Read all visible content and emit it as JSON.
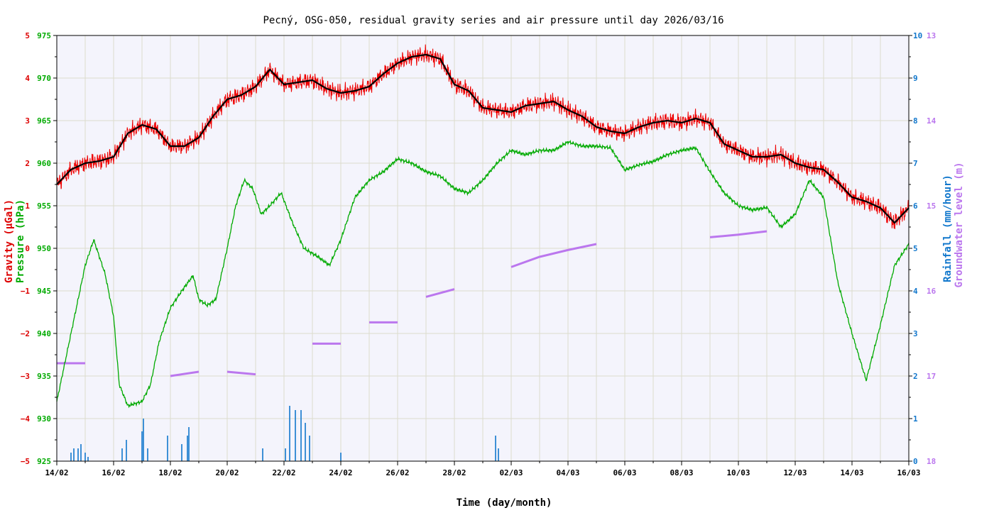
{
  "chart_data": {
    "type": "line",
    "title": "Pecný, OSG-050, residual gravity series and air pressure until day 2026/03/16",
    "xlabel": "Time (day/month)",
    "ylabel_left_1": "Gravity (µGal)",
    "ylabel_left_2": "Pressure (hPa)",
    "ylabel_right_1": "Rainfall (mm/hour)",
    "ylabel_right_2": "Groundwater level (m)",
    "x_range_days": [
      0,
      30
    ],
    "x_ticks": [
      {
        "day": 0,
        "label": "14/02"
      },
      {
        "day": 2,
        "label": "16/02"
      },
      {
        "day": 4,
        "label": "18/02"
      },
      {
        "day": 6,
        "label": "20/02"
      },
      {
        "day": 8,
        "label": "22/02"
      },
      {
        "day": 10,
        "label": "24/02"
      },
      {
        "day": 12,
        "label": "26/02"
      },
      {
        "day": 14,
        "label": "28/02"
      },
      {
        "day": 16,
        "label": "02/03"
      },
      {
        "day": 18,
        "label": "04/03"
      },
      {
        "day": 20,
        "label": "06/03"
      },
      {
        "day": 22,
        "label": "08/03"
      },
      {
        "day": 24,
        "label": "10/03"
      },
      {
        "day": 26,
        "label": "12/03"
      },
      {
        "day": 28,
        "label": "14/03"
      },
      {
        "day": 30,
        "label": "16/03"
      }
    ],
    "gravity_ticks": [
      "5",
      "4",
      "3",
      "2",
      "1",
      "0",
      "−1",
      "−2",
      "−3",
      "−4",
      "−5"
    ],
    "pressure_ticks": [
      "975",
      "970",
      "965",
      "960",
      "955",
      "950",
      "945",
      "940",
      "935",
      "930",
      "925"
    ],
    "rainfall_ticks": [
      "10",
      "9",
      "8",
      "7",
      "6",
      "5",
      "4",
      "3",
      "2",
      "1",
      "0"
    ],
    "groundwater_ticks": [
      "13",
      "14",
      "15",
      "16",
      "17",
      "18"
    ],
    "ylim_gravity": [
      -5,
      5
    ],
    "ylim_pressure": [
      925,
      975
    ],
    "ylim_rainfall": [
      0,
      10
    ],
    "ylim_groundwater": [
      18,
      13
    ],
    "grid": true,
    "series": [
      {
        "kind": "gravity_smoothed",
        "color": "#000000",
        "points": [
          [
            0,
            1.5
          ],
          [
            0.5,
            1.85
          ],
          [
            1,
            2.0
          ],
          [
            1.5,
            2.05
          ],
          [
            2,
            2.15
          ],
          [
            2.5,
            2.7
          ],
          [
            3,
            2.9
          ],
          [
            3.5,
            2.8
          ],
          [
            4,
            2.4
          ],
          [
            4.5,
            2.4
          ],
          [
            5,
            2.6
          ],
          [
            5.5,
            3.1
          ],
          [
            6,
            3.5
          ],
          [
            6.5,
            3.6
          ],
          [
            7,
            3.8
          ],
          [
            7.5,
            4.2
          ],
          [
            8,
            3.85
          ],
          [
            8.5,
            3.9
          ],
          [
            9,
            3.95
          ],
          [
            9.5,
            3.75
          ],
          [
            10,
            3.65
          ],
          [
            10.5,
            3.7
          ],
          [
            11,
            3.8
          ],
          [
            11.5,
            4.1
          ],
          [
            12,
            4.35
          ],
          [
            12.5,
            4.5
          ],
          [
            13,
            4.55
          ],
          [
            13.5,
            4.45
          ],
          [
            14,
            3.85
          ],
          [
            14.5,
            3.7
          ],
          [
            15,
            3.3
          ],
          [
            15.5,
            3.25
          ],
          [
            16,
            3.2
          ],
          [
            16.5,
            3.35
          ],
          [
            17,
            3.4
          ],
          [
            17.5,
            3.45
          ],
          [
            18,
            3.25
          ],
          [
            18.5,
            3.1
          ],
          [
            19,
            2.85
          ],
          [
            19.5,
            2.75
          ],
          [
            20,
            2.7
          ],
          [
            20.5,
            2.85
          ],
          [
            21,
            2.95
          ],
          [
            21.5,
            3.0
          ],
          [
            22,
            2.95
          ],
          [
            22.5,
            3.05
          ],
          [
            23,
            2.95
          ],
          [
            23.5,
            2.45
          ],
          [
            24,
            2.3
          ],
          [
            24.5,
            2.15
          ],
          [
            25,
            2.15
          ],
          [
            25.5,
            2.2
          ],
          [
            26,
            2.0
          ],
          [
            26.5,
            1.9
          ],
          [
            27,
            1.85
          ],
          [
            27.5,
            1.55
          ],
          [
            28,
            1.2
          ],
          [
            28.5,
            1.1
          ],
          [
            29,
            0.95
          ],
          [
            29.5,
            0.6
          ],
          [
            30,
            0.95
          ]
        ]
      },
      {
        "kind": "pressure",
        "color": "#00aa00",
        "points": [
          [
            0,
            932
          ],
          [
            0.5,
            940
          ],
          [
            1,
            948
          ],
          [
            1.3,
            951
          ],
          [
            1.7,
            947
          ],
          [
            2,
            942
          ],
          [
            2.2,
            934
          ],
          [
            2.5,
            931.5
          ],
          [
            3,
            932
          ],
          [
            3.3,
            934
          ],
          [
            3.6,
            939
          ],
          [
            4,
            943
          ],
          [
            4.4,
            945
          ],
          [
            4.8,
            946.8
          ],
          [
            5,
            944
          ],
          [
            5.3,
            943.3
          ],
          [
            5.6,
            944
          ],
          [
            6,
            950
          ],
          [
            6.3,
            955
          ],
          [
            6.6,
            958
          ],
          [
            6.9,
            957
          ],
          [
            7.2,
            954
          ],
          [
            7.5,
            955
          ],
          [
            7.9,
            956.5
          ],
          [
            8.3,
            953
          ],
          [
            8.7,
            950
          ],
          [
            9.2,
            949
          ],
          [
            9.6,
            948
          ],
          [
            10,
            951
          ],
          [
            10.5,
            956
          ],
          [
            11,
            958
          ],
          [
            11.5,
            959
          ],
          [
            12,
            960.5
          ],
          [
            12.5,
            960
          ],
          [
            13,
            959
          ],
          [
            13.5,
            958.5
          ],
          [
            14,
            957
          ],
          [
            14.5,
            956.5
          ],
          [
            15,
            958
          ],
          [
            15.5,
            960
          ],
          [
            16,
            961.5
          ],
          [
            16.5,
            961
          ],
          [
            17,
            961.5
          ],
          [
            17.5,
            961.5
          ],
          [
            18,
            962.5
          ],
          [
            18.5,
            962
          ],
          [
            19,
            962
          ],
          [
            19.5,
            961.8
          ],
          [
            20,
            959.2
          ],
          [
            20.5,
            959.8
          ],
          [
            21,
            960.2
          ],
          [
            21.5,
            961
          ],
          [
            22,
            961.5
          ],
          [
            22.5,
            961.8
          ],
          [
            23,
            959
          ],
          [
            23.5,
            956.5
          ],
          [
            24,
            955
          ],
          [
            24.5,
            954.5
          ],
          [
            25,
            954.8
          ],
          [
            25.5,
            952.5
          ],
          [
            26,
            954
          ],
          [
            26.5,
            958
          ],
          [
            27,
            956
          ],
          [
            27.5,
            946
          ],
          [
            28,
            940
          ],
          [
            28.5,
            934.5
          ],
          [
            29,
            941
          ],
          [
            29.5,
            948
          ],
          [
            30,
            950.5
          ]
        ]
      },
      {
        "kind": "groundwater",
        "color": "#bb77ee",
        "segments": [
          [
            [
              0,
              16.85
            ],
            [
              1,
              16.85
            ]
          ],
          [
            [
              4,
              17.0
            ],
            [
              5,
              16.95
            ]
          ],
          [
            [
              6,
              16.95
            ],
            [
              7,
              16.98
            ]
          ],
          [
            [
              9,
              16.62
            ],
            [
              10,
              16.62
            ]
          ],
          [
            [
              11,
              16.37
            ],
            [
              12,
              16.37
            ]
          ],
          [
            [
              13,
              16.07
            ],
            [
              14,
              15.98
            ]
          ],
          [
            [
              16,
              15.72
            ],
            [
              17,
              15.6
            ],
            [
              18,
              15.52
            ],
            [
              19,
              15.45
            ]
          ],
          [
            [
              23,
              15.37
            ],
            [
              24,
              15.34
            ],
            [
              25,
              15.3
            ]
          ]
        ]
      },
      {
        "kind": "rainfall_bars",
        "color": "#1177cc",
        "points": [
          [
            0.5,
            0.2
          ],
          [
            0.6,
            0.3
          ],
          [
            0.75,
            0.3
          ],
          [
            0.85,
            0.4
          ],
          [
            1.0,
            0.2
          ],
          [
            1.1,
            0.1
          ],
          [
            2.3,
            0.3
          ],
          [
            2.45,
            0.5
          ],
          [
            3.0,
            0.7
          ],
          [
            3.05,
            1.0
          ],
          [
            3.2,
            0.3
          ],
          [
            3.9,
            0.6
          ],
          [
            4.4,
            0.4
          ],
          [
            4.6,
            0.6
          ],
          [
            4.65,
            0.8
          ],
          [
            7.25,
            0.3
          ],
          [
            8.05,
            0.3
          ],
          [
            8.2,
            1.3
          ],
          [
            8.4,
            1.2
          ],
          [
            8.6,
            1.2
          ],
          [
            8.75,
            0.9
          ],
          [
            8.9,
            0.6
          ],
          [
            10.0,
            0.2
          ],
          [
            15.45,
            0.6
          ],
          [
            15.55,
            0.3
          ]
        ]
      }
    ]
  }
}
